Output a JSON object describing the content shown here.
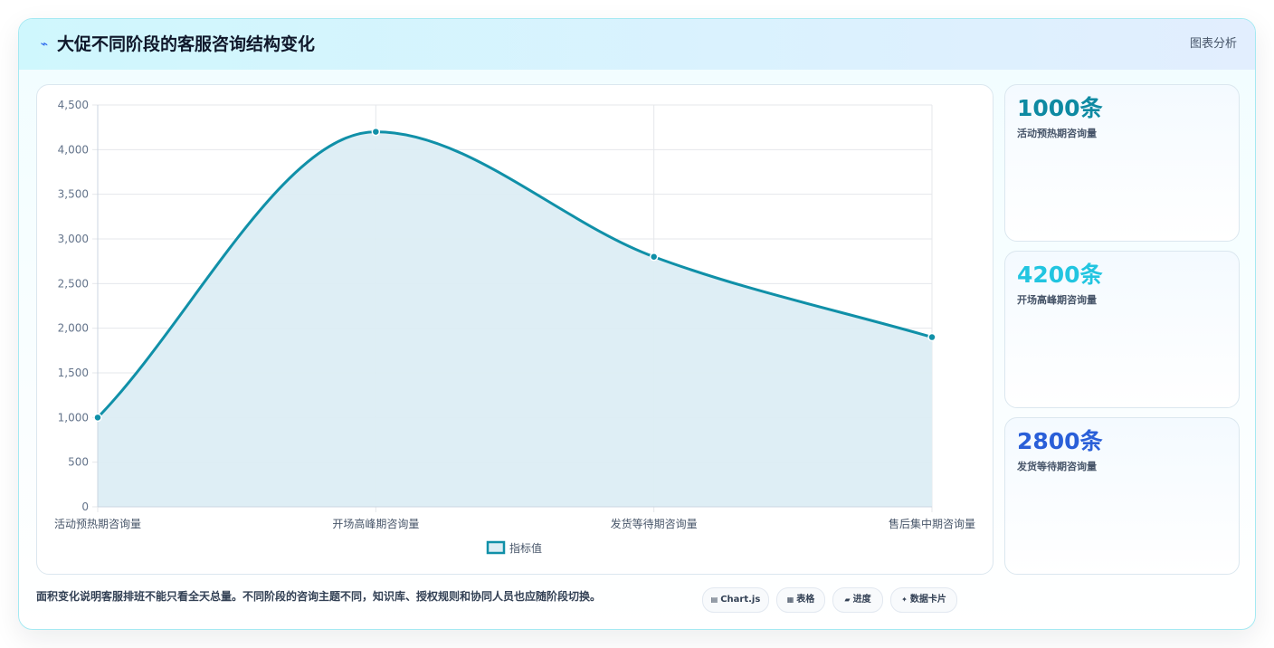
{
  "header": {
    "icon": "chart-spark-icon",
    "title": "大促不同阶段的客服咨询结构变化",
    "right_label": "图表分析"
  },
  "chart_data": {
    "type": "area",
    "categories": [
      "活动预热期咨询量",
      "开场高峰期咨询量",
      "发货等待期咨询量",
      "售后集中期咨询量"
    ],
    "series": [
      {
        "name": "指标值",
        "values": [
          1000,
          4200,
          2800,
          1900
        ]
      }
    ],
    "ylim": [
      0,
      4500
    ],
    "yticks": [
      0,
      500,
      1000,
      1500,
      2000,
      2500,
      3000,
      3500,
      4000,
      4500
    ],
    "ytick_labels": [
      "0",
      "500",
      "1,000",
      "1,500",
      "2,000",
      "2,500",
      "3,000",
      "3,500",
      "4,000",
      "4,500"
    ],
    "grid": true,
    "legend": "bottom-center",
    "colors": {
      "line": "#1090a8",
      "fill": "#dcedf4",
      "grid": "#e5e7eb"
    }
  },
  "stats": [
    {
      "value": "1000条",
      "label": "活动预热期咨询量",
      "color": "#0e8aa2"
    },
    {
      "value": "4200条",
      "label": "开场高峰期咨询量",
      "color": "#22c5e0"
    },
    {
      "value": "2800条",
      "label": "发货等待期咨询量",
      "color": "#2a5fd8"
    }
  ],
  "footer": {
    "note": "面积变化说明客服排班不能只看全天总量。不同阶段的咨询主题不同，知识库、授权规则和协同人员也应随阶段切换。",
    "tags": [
      {
        "icon": "▤",
        "label": "Chart.js"
      },
      {
        "icon": "▦",
        "label": "表格"
      },
      {
        "icon": "▰",
        "label": "进度"
      },
      {
        "icon": "✦",
        "label": "数据卡片"
      }
    ]
  }
}
